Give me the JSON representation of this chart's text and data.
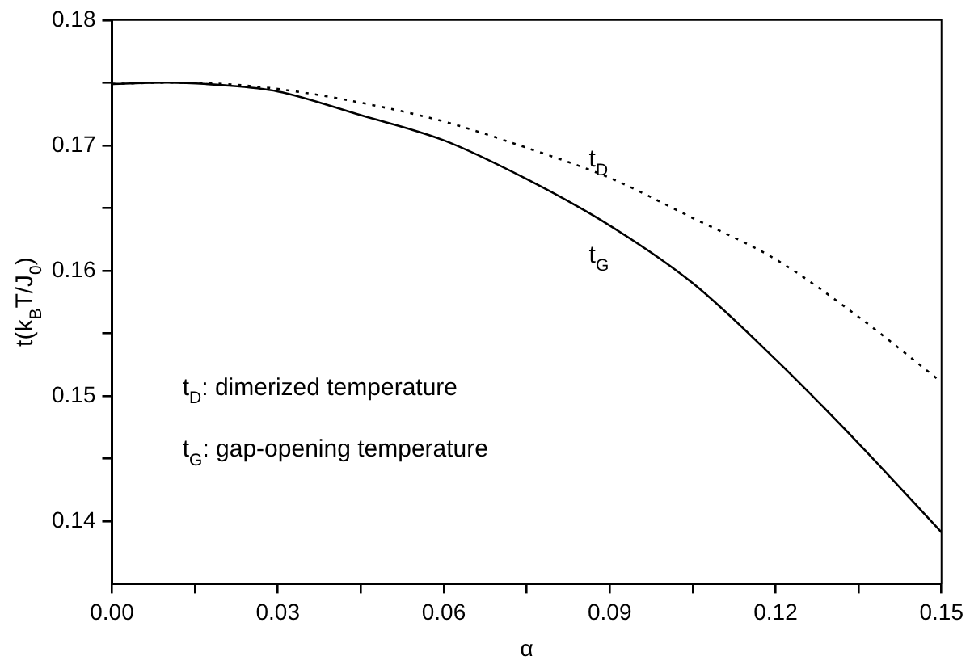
{
  "chart_data": {
    "type": "line",
    "xlabel": "α",
    "ylabel": "t(k$_{B}$T/J$_{0}$)",
    "xlim": [
      0,
      0.15
    ],
    "ylim": [
      0.135,
      0.18
    ],
    "xticks": [
      {
        "value": 0,
        "label": "0.00"
      },
      {
        "value": 0.015,
        "label": null
      },
      {
        "value": 0.03,
        "label": "0.03"
      },
      {
        "value": 0.045,
        "label": null
      },
      {
        "value": 0.06,
        "label": "0.06"
      },
      {
        "value": 0.075,
        "label": null
      },
      {
        "value": 0.09,
        "label": "0.09"
      },
      {
        "value": 0.105,
        "label": null
      },
      {
        "value": 0.12,
        "label": "0.12"
      },
      {
        "value": 0.135,
        "label": null
      },
      {
        "value": 0.15,
        "label": "0.15"
      }
    ],
    "yticks": [
      0.14,
      {
        "value": 0.145,
        "label": null
      },
      0.15,
      {
        "value": 0.155,
        "label": null
      },
      0.16,
      {
        "value": 0.165,
        "label": null
      },
      0.17,
      {
        "value": 0.175,
        "label": null
      },
      0.18
    ],
    "grid": false,
    "legend": false,
    "marker": "none",
    "series": [
      {
        "color": "#000000",
        "line_style": "dotted",
        "x": [
          0,
          0.01,
          0.02,
          0.03,
          0.045,
          0.06,
          0.075,
          0.09,
          0.105,
          0.12,
          0.135,
          0.15
        ],
        "values": [
          0.1749,
          0.175,
          0.1749,
          0.1745,
          0.1734,
          0.1719,
          0.1698,
          0.1674,
          0.1642,
          0.1609,
          0.1563,
          0.1511
        ]
      },
      {
        "color": "#000000",
        "line_style": "solid",
        "x": [
          0,
          0.01,
          0.02,
          0.03,
          0.045,
          0.06,
          0.075,
          0.09,
          0.105,
          0.12,
          0.135,
          0.15
        ],
        "values": [
          0.1749,
          0.175,
          0.1748,
          0.1743,
          0.1724,
          0.1704,
          0.1673,
          0.1636,
          0.159,
          0.1529,
          0.1462,
          0.1391
        ]
      }
    ],
    "annotations": [
      "t$_{D}$",
      "t$_{G}$",
      "t$_{D}$: dimerized temperature",
      "t$_{G}$: gap-opening temperature"
    ]
  }
}
